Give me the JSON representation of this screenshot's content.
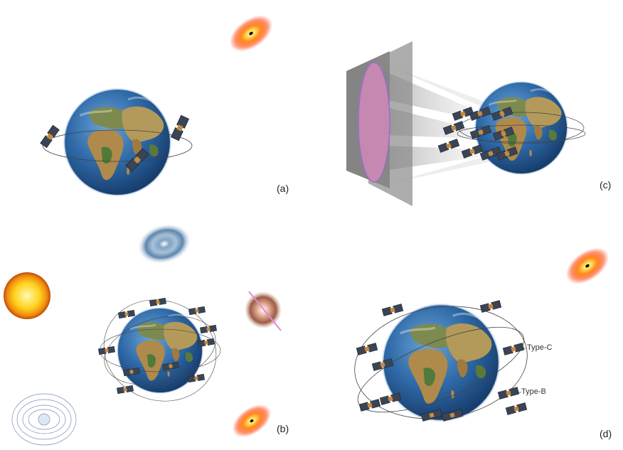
{
  "panels": {
    "a": {
      "label": "(a)"
    },
    "b": {
      "label": "(b)"
    },
    "c": {
      "label": "(c)"
    },
    "d": {
      "label": "(d)",
      "orbit_labels": [
        "Type-C",
        "Type-B"
      ]
    }
  },
  "colors": {
    "ocean": "#2f5f9a",
    "land": "#b08a4a",
    "green": "#4f7a3a",
    "sun": "#f4c21b",
    "blackhole_glow": "#ff6a1a",
    "detector_pink": "#d98ac0",
    "detector_gray": "#6a6a6a"
  }
}
